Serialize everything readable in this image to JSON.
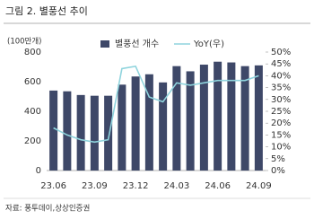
{
  "chart_data": {
    "type": "bar_line",
    "title": "그림 2. 별풍선 추이",
    "y_label": "(100만개)",
    "source": "자료: 풍투데이,상상인증권",
    "categories": [
      "23.06",
      null,
      null,
      "23.09",
      null,
      null,
      "23.12",
      null,
      null,
      "24.03",
      null,
      null,
      "24.06",
      null,
      null,
      "24.09"
    ],
    "series": [
      {
        "name": "별풍선 개수",
        "color": "#3e4868",
        "kind": "bar",
        "values": [
          540,
          535,
          510,
          505,
          505,
          580,
          635,
          650,
          595,
          705,
          670,
          715,
          735,
          730,
          705,
          710
        ]
      },
      {
        "name": "YoY(우)",
        "color": "#8fd4dd",
        "kind": "line",
        "axis": "y2",
        "values": [
          18,
          15,
          13,
          12,
          13,
          43,
          44,
          31,
          29,
          37,
          36,
          37,
          38,
          38,
          38,
          40
        ]
      }
    ],
    "ylim": [
      0,
      800
    ],
    "yticks": [
      0,
      200,
      400,
      600,
      800
    ],
    "y2lim": [
      0,
      50
    ],
    "y2ticks": [
      {
        "value": 0,
        "label": "0%"
      },
      {
        "value": 5,
        "label": "5%"
      },
      {
        "value": 10,
        "label": "10%"
      },
      {
        "value": 15,
        "label": "15%"
      },
      {
        "value": 20,
        "label": "20%"
      },
      {
        "value": 25,
        "label": "25%"
      },
      {
        "value": 30,
        "label": "30%"
      },
      {
        "value": 35,
        "label": "35%"
      },
      {
        "value": 40,
        "label": "40%"
      },
      {
        "value": 45,
        "label": "45%"
      },
      {
        "value": 50,
        "label": "50%"
      }
    ]
  }
}
